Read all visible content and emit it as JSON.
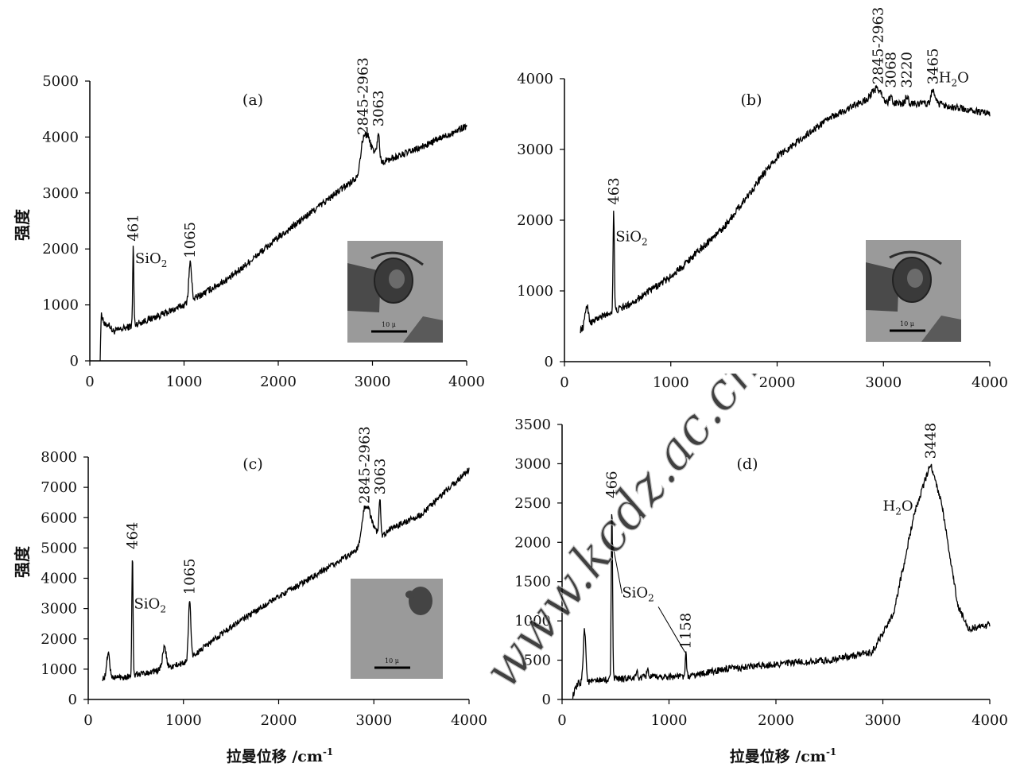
{
  "figure": {
    "ylabel": "强度",
    "xlabel": "拉曼位移 /cm",
    "xlabel_sup": "-1",
    "watermark": "www.kcdz.ac.cn/"
  },
  "chart_data": [
    {
      "id": "a",
      "type": "line",
      "panel_label": "(a)",
      "xlim": [
        0,
        4000
      ],
      "ylim": [
        0,
        5000
      ],
      "xticks": [
        0,
        1000,
        2000,
        3000,
        4000
      ],
      "yticks": [
        0,
        1000,
        2000,
        3000,
        4000,
        5000
      ],
      "baseline": [
        [
          110,
          0
        ],
        [
          120,
          700
        ],
        [
          200,
          500
        ],
        [
          400,
          600
        ],
        [
          800,
          850
        ],
        [
          1000,
          1000
        ],
        [
          1500,
          1500
        ],
        [
          2000,
          2200
        ],
        [
          2500,
          2850
        ],
        [
          2850,
          3300
        ],
        [
          2950,
          3850
        ],
        [
          3063,
          3700
        ],
        [
          3100,
          3550
        ],
        [
          3500,
          3800
        ],
        [
          4000,
          4200
        ]
      ],
      "peaks": [
        [
          130,
          800,
          15
        ],
        [
          200,
          650,
          20
        ],
        [
          461,
          2050,
          6
        ],
        [
          1065,
          1750,
          15
        ],
        [
          2900,
          3950,
          30
        ],
        [
          2950,
          3950,
          25
        ],
        [
          3063,
          4100,
          10
        ]
      ],
      "annotations": [
        {
          "text": "461",
          "x": 461,
          "y": 2050,
          "vertical": true
        },
        {
          "text": "1065",
          "x": 1065,
          "y": 1750,
          "vertical": true
        },
        {
          "text": "2845-2963",
          "x": 2900,
          "y": 3950,
          "vertical": true
        },
        {
          "text": "3063",
          "x": 3063,
          "y": 4100,
          "vertical": true
        },
        {
          "text": "SiO",
          "sub": "2",
          "x": 480,
          "y": 1750,
          "vertical": false
        }
      ],
      "inset": {
        "scale_label": "10 μ",
        "style": "inclusion-bubble"
      }
    },
    {
      "id": "b",
      "type": "line",
      "panel_label": "(b)",
      "xlim": [
        0,
        4000
      ],
      "ylim": [
        0,
        4000
      ],
      "xticks": [
        0,
        1000,
        2000,
        3000,
        4000
      ],
      "yticks": [
        0,
        1000,
        2000,
        3000,
        4000
      ],
      "baseline": [
        [
          150,
          450
        ],
        [
          300,
          600
        ],
        [
          600,
          800
        ],
        [
          1000,
          1200
        ],
        [
          1500,
          1900
        ],
        [
          2000,
          2900
        ],
        [
          2500,
          3450
        ],
        [
          2900,
          3750
        ],
        [
          3000,
          3650
        ],
        [
          3500,
          3650
        ],
        [
          4000,
          3500
        ]
      ],
      "peaks": [
        [
          210,
          800,
          15
        ],
        [
          463,
          2150,
          6
        ],
        [
          2950,
          3850,
          40
        ],
        [
          3068,
          3750,
          12
        ],
        [
          3220,
          3750,
          12
        ],
        [
          3465,
          3850,
          15
        ]
      ],
      "annotations": [
        {
          "text": "463",
          "x": 463,
          "y": 2150,
          "vertical": true
        },
        {
          "text": "2845-2963",
          "x": 2950,
          "y": 3850,
          "vertical": true
        },
        {
          "text": "3068",
          "x": 3068,
          "y": 3800,
          "vertical": true
        },
        {
          "text": "3220",
          "x": 3220,
          "y": 3800,
          "vertical": true
        },
        {
          "text": "3465",
          "x": 3465,
          "y": 3850,
          "vertical": true
        },
        {
          "text": "H",
          "sub": "2",
          "tail": "O",
          "x": 3520,
          "y": 3950,
          "vertical": false
        },
        {
          "text": "SiO",
          "sub": "2",
          "x": 480,
          "y": 1700,
          "vertical": false
        }
      ],
      "inset": {
        "scale_label": "10 μ",
        "style": "inclusion-bubble"
      }
    },
    {
      "id": "c",
      "type": "line",
      "panel_label": "(c)",
      "xlim": [
        0,
        4000
      ],
      "ylim": [
        0,
        8000
      ],
      "xticks": [
        0,
        1000,
        2000,
        3000,
        4000
      ],
      "yticks": [
        0,
        1000,
        2000,
        3000,
        4000,
        5000,
        6000,
        7000,
        8000
      ],
      "baseline": [
        [
          150,
          700
        ],
        [
          400,
          750
        ],
        [
          800,
          1000
        ],
        [
          1000,
          1200
        ],
        [
          1500,
          2400
        ],
        [
          2000,
          3400
        ],
        [
          2500,
          4300
        ],
        [
          2850,
          5000
        ],
        [
          2950,
          6100
        ],
        [
          3063,
          5300
        ],
        [
          3150,
          5600
        ],
        [
          3500,
          6100
        ],
        [
          4000,
          7600
        ]
      ],
      "peaks": [
        [
          210,
          1550,
          15
        ],
        [
          464,
          4800,
          6
        ],
        [
          800,
          1700,
          20
        ],
        [
          1065,
          3300,
          12
        ],
        [
          2900,
          6300,
          30
        ],
        [
          3063,
          6600,
          10
        ]
      ],
      "annotations": [
        {
          "text": "464",
          "x": 464,
          "y": 4800,
          "vertical": true
        },
        {
          "text": "1065",
          "x": 1065,
          "y": 3300,
          "vertical": true
        },
        {
          "text": "2845-2963",
          "x": 2900,
          "y": 6300,
          "vertical": true
        },
        {
          "text": "3063",
          "x": 3063,
          "y": 6600,
          "vertical": true
        },
        {
          "text": "SiO",
          "sub": "2",
          "x": 480,
          "y": 3000,
          "vertical": false
        }
      ],
      "inset": {
        "scale_label": "10 μ",
        "style": "blob"
      }
    },
    {
      "id": "d",
      "type": "line",
      "panel_label": "(d)",
      "xlim": [
        0,
        4000
      ],
      "ylim": [
        0,
        3500
      ],
      "xticks": [
        0,
        1000,
        2000,
        3000,
        4000
      ],
      "yticks": [
        0,
        500,
        1000,
        1500,
        2000,
        2500,
        3000,
        3500
      ],
      "baseline": [
        [
          100,
          50
        ],
        [
          150,
          200
        ],
        [
          400,
          250
        ],
        [
          800,
          280
        ],
        [
          1200,
          300
        ],
        [
          1500,
          380
        ],
        [
          2000,
          450
        ],
        [
          2500,
          500
        ],
        [
          2900,
          600
        ],
        [
          3100,
          1100
        ],
        [
          3300,
          2400
        ],
        [
          3448,
          3000
        ],
        [
          3550,
          2500
        ],
        [
          3700,
          1200
        ],
        [
          3800,
          900
        ],
        [
          4000,
          950
        ]
      ],
      "peaks": [
        [
          210,
          900,
          12
        ],
        [
          466,
          2500,
          6
        ],
        [
          700,
          350,
          8
        ],
        [
          800,
          400,
          8
        ],
        [
          1158,
          580,
          6
        ]
      ],
      "annotations": [
        {
          "text": "466",
          "x": 466,
          "y": 2500,
          "vertical": true
        },
        {
          "text": "1158",
          "x": 1158,
          "y": 580,
          "vertical": true
        },
        {
          "text": "3448",
          "x": 3448,
          "y": 3000,
          "vertical": true
        },
        {
          "text": "H",
          "sub": "2",
          "tail": "O",
          "x": 3000,
          "y": 2400,
          "vertical": false
        },
        {
          "text": "SiO",
          "sub": "2",
          "x": 560,
          "y": 1300,
          "vertical": false
        }
      ],
      "inset": null
    }
  ]
}
